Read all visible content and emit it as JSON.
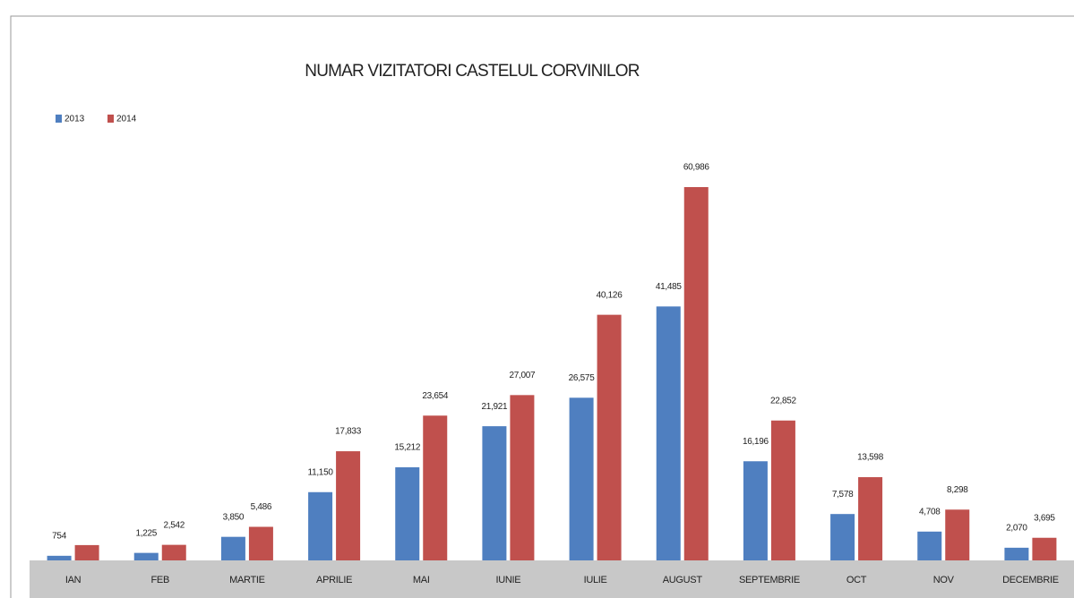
{
  "chart_data": {
    "type": "bar",
    "title": "NUMAR VIZITATORI CASTELUL CORVINILOR",
    "categories": [
      "IAN",
      "FEB",
      "MARTIE",
      "APRILIE",
      "MAI",
      "IUNIE",
      "IULIE",
      "AUGUST",
      "SEPTEMBRIE",
      "OCT",
      "NOV",
      "DECEMBRIE"
    ],
    "series": [
      {
        "name": "2013",
        "color": "#4f7fc0",
        "values": [
          754,
          1225,
          3850,
          11150,
          15212,
          21921,
          26575,
          41485,
          16196,
          7578,
          4708,
          2070
        ],
        "value_labels": [
          "754",
          "1,225",
          "3,850",
          "11,150",
          "15,212",
          "21,921",
          "26,575",
          "41,485",
          "16,196",
          "7,578",
          "4,708",
          "2,070"
        ]
      },
      {
        "name": "2014",
        "color": "#c0504d",
        "values": [
          2500,
          2542,
          5486,
          17833,
          23654,
          27007,
          40126,
          60986,
          22852,
          13598,
          8298,
          3695
        ],
        "value_labels": [
          null,
          "2,542",
          "5,486",
          "17,833",
          "23,654",
          "27,007",
          "40,126",
          "60,986",
          "22,852",
          "13,598",
          "8,298",
          "3,695"
        ]
      }
    ],
    "legend": "top-left"
  }
}
